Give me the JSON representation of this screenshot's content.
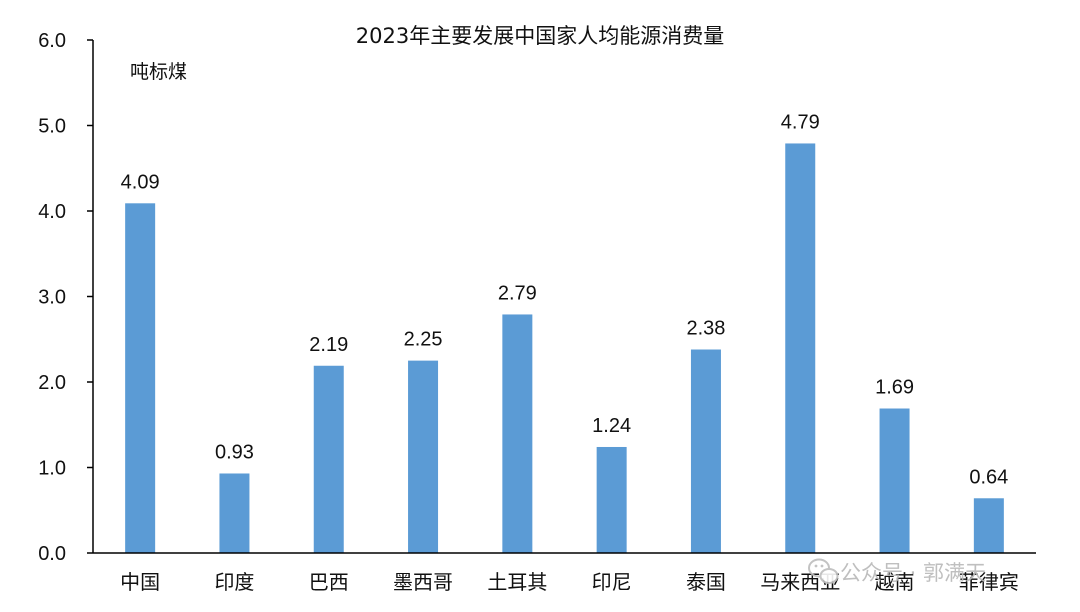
{
  "chart_data": {
    "type": "bar",
    "title": "2023年主要发展中国家人均能源消费量",
    "unit_label": "吨标煤",
    "xlabel": "",
    "ylabel": "",
    "categories": [
      "中国",
      "印度",
      "巴西",
      "墨西哥",
      "土耳其",
      "印尼",
      "泰国",
      "马来西亚",
      "越南",
      "菲律宾"
    ],
    "values": [
      4.09,
      0.93,
      2.19,
      2.25,
      2.79,
      1.24,
      2.38,
      4.79,
      1.69,
      0.64
    ],
    "value_labels": [
      "4.09",
      "0.93",
      "2.19",
      "2.25",
      "2.79",
      "1.24",
      "2.38",
      "4.79",
      "1.69",
      "0.64"
    ],
    "ylim": [
      0,
      6
    ],
    "y_ticks": [
      "0.0",
      "1.0",
      "2.0",
      "3.0",
      "4.0",
      "5.0",
      "6.0"
    ],
    "grid": false,
    "legend": "none",
    "bar_color": "#5b9bd5",
    "axis_color": "#000000"
  },
  "watermark": {
    "text": "公众号 · 郭满天",
    "icon": "wechat-logo-icon"
  }
}
